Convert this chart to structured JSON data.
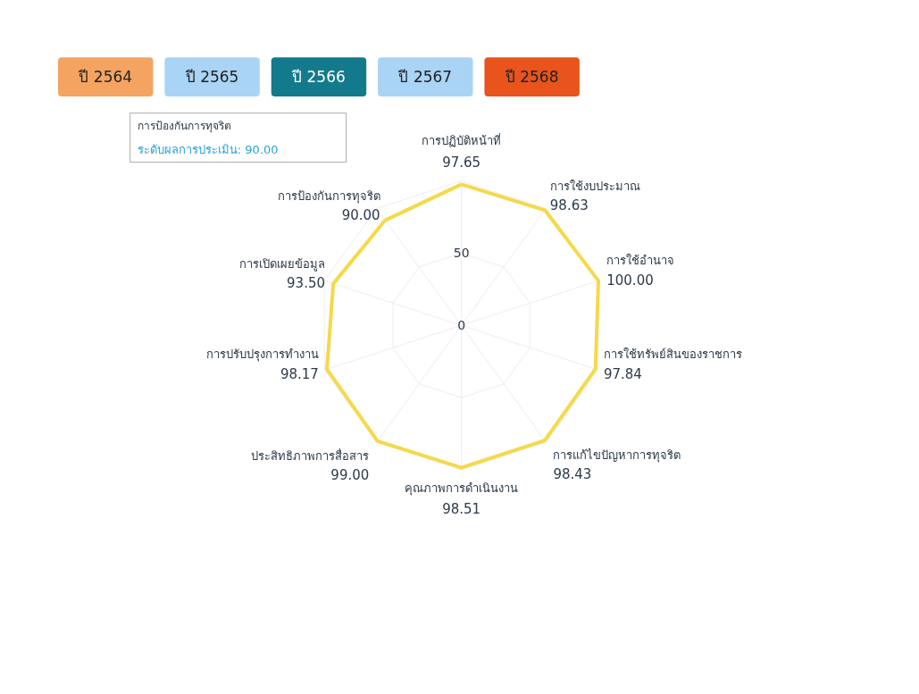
{
  "chart_data": {
    "type": "radar",
    "categories": [
      "การปฏิบัติหน้าที่",
      "การใช้งบประมาณ",
      "การใช้อำนาจ",
      "การใช้ทรัพย์สินของราชการ",
      "การแก้ไขปัญหาการทุจริต",
      "คุณภาพการดำเนินงาน",
      "ประสิทธิภาพการสื่อสาร",
      "การปรับปรุงการทำงาน",
      "การเปิดเผยข้อมูล",
      "การป้องกันการทุจริต"
    ],
    "series": [
      {
        "color": "#f5d94a",
        "values": [
          97.65,
          98.63,
          100.0,
          97.84,
          98.43,
          98.51,
          99.0,
          98.17,
          93.5,
          90.0
        ],
        "value_labels": [
          "97.65",
          "98.63",
          "100.00",
          "97.84",
          "98.43",
          "98.51",
          "99.00",
          "98.17",
          "93.50",
          "90.00"
        ]
      }
    ],
    "ylim": [
      0,
      100
    ],
    "yticks": [
      0,
      50
    ],
    "grid": true,
    "annotations": [
      "ปี 2564",
      "ปี 2565",
      "ปี 2566",
      "ปี 2567",
      "ปี 2568",
      "การป้องกันการทุจริต",
      "ระดับผลการประเมิน: 90.00"
    ]
  }
}
